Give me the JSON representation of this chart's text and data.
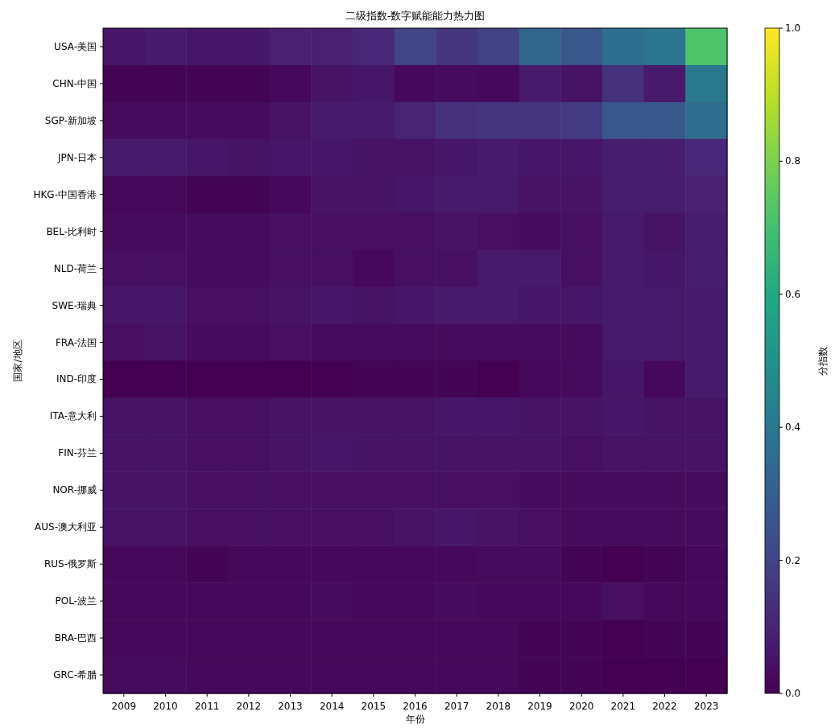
{
  "chart_data": {
    "type": "heatmap",
    "title": "二级指数-数字赋能能力热力图",
    "xlabel": "年份",
    "ylabel": "国家/地区",
    "clabel": "分指数",
    "categories": [
      "2009",
      "2010",
      "2011",
      "2012",
      "2013",
      "2014",
      "2015",
      "2016",
      "2017",
      "2018",
      "2019",
      "2020",
      "2021",
      "2022",
      "2023"
    ],
    "y_categories": [
      "USA-美国",
      "CHN-中国",
      "SGP-新加坡",
      "JPN-日本",
      "HKG-中国香港",
      "BEL-比利时",
      "NLD-荷兰",
      "SWE-瑞典",
      "FRA-法国",
      "IND-印度",
      "ITA-意大利",
      "FIN-芬兰",
      "NOR-挪威",
      "AUS-澳大利亚",
      "RUS-俄罗斯",
      "POL-波兰",
      "BRA-巴西",
      "GRC-希腊"
    ],
    "cells": [
      [
        0.06,
        0.07,
        0.06,
        0.06,
        0.09,
        0.09,
        0.11,
        0.2,
        0.15,
        0.19,
        0.33,
        0.27,
        0.36,
        0.39,
        0.72
      ],
      [
        0.01,
        0.01,
        0.01,
        0.01,
        0.02,
        0.05,
        0.06,
        0.02,
        0.03,
        0.02,
        0.07,
        0.05,
        0.14,
        0.07,
        0.4
      ],
      [
        0.03,
        0.03,
        0.03,
        0.03,
        0.05,
        0.07,
        0.07,
        0.1,
        0.14,
        0.15,
        0.15,
        0.17,
        0.27,
        0.27,
        0.35
      ],
      [
        0.07,
        0.07,
        0.06,
        0.05,
        0.06,
        0.06,
        0.05,
        0.05,
        0.06,
        0.07,
        0.06,
        0.06,
        0.08,
        0.08,
        0.11
      ],
      [
        0.02,
        0.02,
        0.01,
        0.01,
        0.02,
        0.05,
        0.05,
        0.06,
        0.07,
        0.07,
        0.05,
        0.05,
        0.08,
        0.08,
        0.09
      ],
      [
        0.03,
        0.03,
        0.03,
        0.03,
        0.04,
        0.04,
        0.04,
        0.04,
        0.05,
        0.04,
        0.03,
        0.04,
        0.07,
        0.05,
        0.08
      ],
      [
        0.04,
        0.04,
        0.03,
        0.03,
        0.04,
        0.04,
        0.02,
        0.04,
        0.04,
        0.07,
        0.07,
        0.04,
        0.07,
        0.06,
        0.08
      ],
      [
        0.06,
        0.06,
        0.04,
        0.04,
        0.05,
        0.06,
        0.05,
        0.06,
        0.07,
        0.07,
        0.06,
        0.06,
        0.07,
        0.07,
        0.07
      ],
      [
        0.04,
        0.05,
        0.03,
        0.03,
        0.04,
        0.03,
        0.03,
        0.03,
        0.03,
        0.03,
        0.03,
        0.03,
        0.07,
        0.07,
        0.07
      ],
      [
        0.0,
        0.0,
        0.0,
        0.0,
        0.0,
        0.0,
        0.01,
        0.01,
        0.01,
        0.0,
        0.02,
        0.03,
        0.06,
        0.02,
        0.07
      ],
      [
        0.05,
        0.05,
        0.04,
        0.04,
        0.05,
        0.05,
        0.05,
        0.05,
        0.06,
        0.06,
        0.05,
        0.05,
        0.06,
        0.05,
        0.05
      ],
      [
        0.05,
        0.05,
        0.04,
        0.04,
        0.05,
        0.06,
        0.05,
        0.05,
        0.05,
        0.05,
        0.05,
        0.04,
        0.05,
        0.05,
        0.05
      ],
      [
        0.05,
        0.05,
        0.04,
        0.04,
        0.04,
        0.04,
        0.04,
        0.04,
        0.04,
        0.04,
        0.03,
        0.03,
        0.03,
        0.03,
        0.03
      ],
      [
        0.05,
        0.05,
        0.04,
        0.04,
        0.04,
        0.04,
        0.04,
        0.05,
        0.06,
        0.05,
        0.04,
        0.03,
        0.03,
        0.03,
        0.03
      ],
      [
        0.02,
        0.02,
        0.01,
        0.02,
        0.02,
        0.02,
        0.02,
        0.02,
        0.02,
        0.03,
        0.03,
        0.01,
        0.0,
        0.01,
        0.02
      ],
      [
        0.02,
        0.02,
        0.02,
        0.02,
        0.02,
        0.03,
        0.02,
        0.02,
        0.03,
        0.02,
        0.02,
        0.02,
        0.04,
        0.02,
        0.02
      ],
      [
        0.02,
        0.02,
        0.02,
        0.02,
        0.02,
        0.02,
        0.02,
        0.02,
        0.02,
        0.02,
        0.01,
        0.01,
        0.0,
        0.01,
        0.01
      ],
      [
        0.03,
        0.03,
        0.02,
        0.02,
        0.02,
        0.02,
        0.02,
        0.02,
        0.02,
        0.02,
        0.01,
        0.01,
        0.0,
        0.0,
        0.0
      ]
    ],
    "clim": [
      0,
      1
    ],
    "cticks": [
      {
        "value": 0,
        "label": "0.0"
      },
      {
        "value": 0.2,
        "label": "0.2"
      },
      {
        "value": 0.4,
        "label": "0.4"
      },
      {
        "value": 0.6,
        "label": "0.6"
      },
      {
        "value": 0.8,
        "label": "0.8"
      },
      {
        "value": 1,
        "label": "1.0"
      }
    ]
  }
}
